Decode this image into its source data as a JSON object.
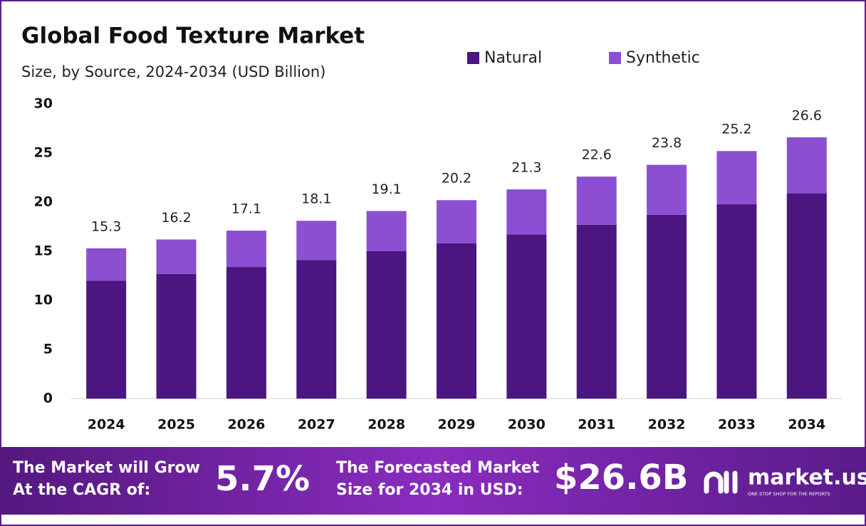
{
  "chart_data": {
    "type": "stacked-bar",
    "title": "Global Food Texture Market",
    "subtitle": "Size, by Source, 2024-2034 (USD Billion)",
    "categories": [
      "2024",
      "2025",
      "2026",
      "2027",
      "2028",
      "2029",
      "2030",
      "2031",
      "2032",
      "2033",
      "2034"
    ],
    "series": [
      {
        "name": "Natural",
        "color": "#4b1680",
        "values": [
          12.0,
          12.7,
          13.4,
          14.1,
          15.0,
          15.8,
          16.7,
          17.7,
          18.7,
          19.8,
          20.9
        ]
      },
      {
        "name": "Synthetic",
        "color": "#8c4fd1",
        "values": [
          3.3,
          3.5,
          3.7,
          4.0,
          4.1,
          4.4,
          4.6,
          4.9,
          5.1,
          5.4,
          5.7
        ]
      }
    ],
    "totals": [
      15.3,
      16.2,
      17.1,
      18.1,
      19.1,
      20.2,
      21.3,
      22.6,
      23.8,
      25.2,
      26.6
    ],
    "ylim": [
      0,
      30
    ],
    "yticks": [
      0,
      5,
      10,
      15,
      20,
      25,
      30
    ],
    "grid": false,
    "legend": "top"
  },
  "footer": {
    "cagr_text_1": "The Market will Grow",
    "cagr_text_2": "At the CAGR of:",
    "cagr_value": "5.7%",
    "forecast_text_1": "The Forecasted Market",
    "forecast_text_2": "Size for 2034 in USD:",
    "forecast_value": "$26.6B",
    "brand": "market.us",
    "tagline": "ONE STOP SHOP FOR THE REPORTS"
  }
}
